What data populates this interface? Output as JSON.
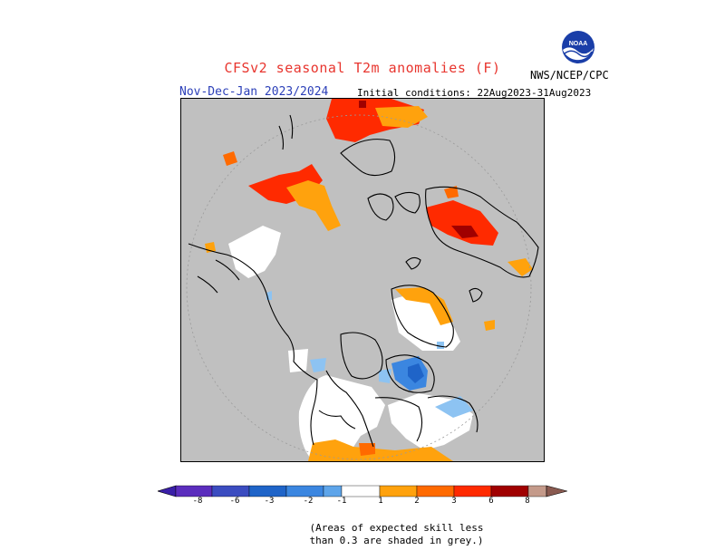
{
  "header": {
    "title": "CFSv2 seasonal T2m anomalies (F)",
    "period": "Nov-Dec-Jan 2023/2024",
    "initial_conditions": "Initial conditions: 22Aug2023-31Aug2023",
    "agency": "NWS/NCEP/CPC",
    "logo_text": "NOAA"
  },
  "colors": {
    "skill_mask_grey": "#c0c0c0",
    "neutral_white": "#ffffff",
    "cold": [
      "#5b2dbd",
      "#3b4cc0",
      "#1f64c8",
      "#3b86e0",
      "#5ea5ea",
      "#8dc3f2"
    ],
    "warm": [
      "#ffa20d",
      "#ff6a00",
      "#ff2a00",
      "#a00000",
      "#c49a8a",
      "#8a5a50"
    ]
  },
  "legend": {
    "ticks": [
      "-8",
      "-6",
      "-3",
      "-2",
      "-1",
      "1",
      "2",
      "3",
      "6",
      "8"
    ],
    "unit": "F"
  },
  "note": "(Areas of expected skill less\nthan 0.3 are shaded in grey.)"
}
